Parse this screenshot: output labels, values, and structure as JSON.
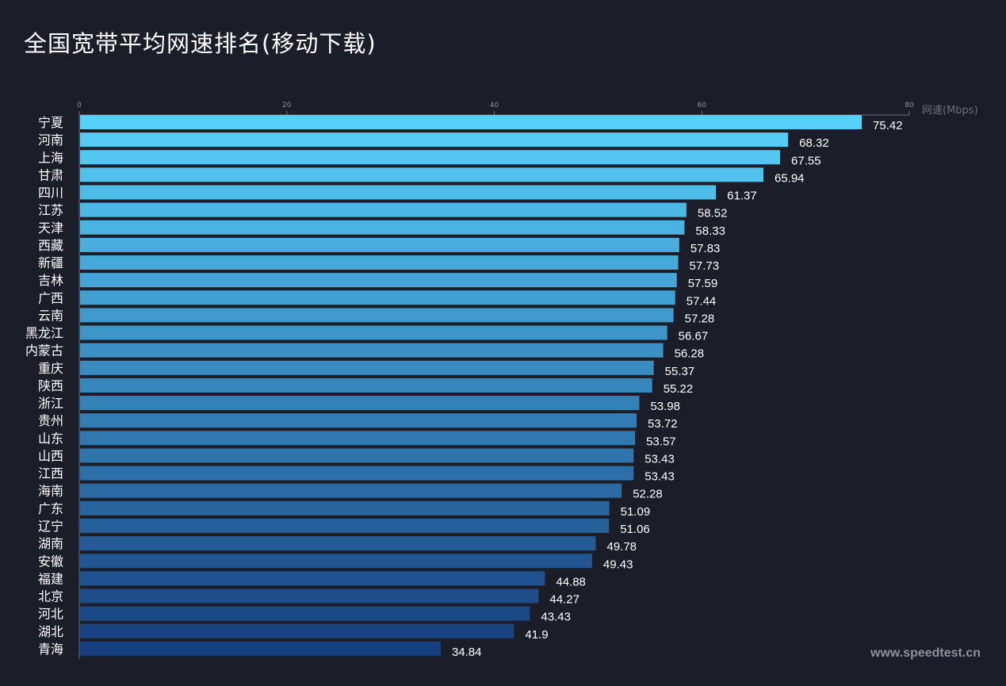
{
  "chart_data": {
    "type": "bar",
    "orientation": "horizontal",
    "title": "全国宽带平均网速排名(移动下载)",
    "xlabel": "网速(Mbps)",
    "ylabel": "",
    "xlim": [
      0,
      80
    ],
    "x_ticks": [
      "0",
      "20",
      "40",
      "60",
      "80"
    ],
    "x_axis_position": "top",
    "grid": false,
    "data_labels": true,
    "color_gradient": [
      "#58d0fa",
      "#173e7e"
    ],
    "categories": [
      "宁夏",
      "河南",
      "上海",
      "甘肃",
      "四川",
      "江苏",
      "天津",
      "西藏",
      "新疆",
      "吉林",
      "广西",
      "云南",
      "黑龙江",
      "内蒙古",
      "重庆",
      "陕西",
      "浙江",
      "贵州",
      "山东",
      "山西",
      "江西",
      "海南",
      "广东",
      "辽宁",
      "湖南",
      "安徽",
      "福建",
      "北京",
      "河北",
      "湖北",
      "青海"
    ],
    "values": [
      75.42,
      68.32,
      67.55,
      65.94,
      61.37,
      58.52,
      58.33,
      57.83,
      57.73,
      57.59,
      57.44,
      57.28,
      56.67,
      56.28,
      55.37,
      55.22,
      53.98,
      53.72,
      53.57,
      53.43,
      53.43,
      52.28,
      51.09,
      51.06,
      49.78,
      49.43,
      44.88,
      44.27,
      43.43,
      41.9,
      34.84
    ]
  },
  "watermark": "www.speedtest.cn"
}
